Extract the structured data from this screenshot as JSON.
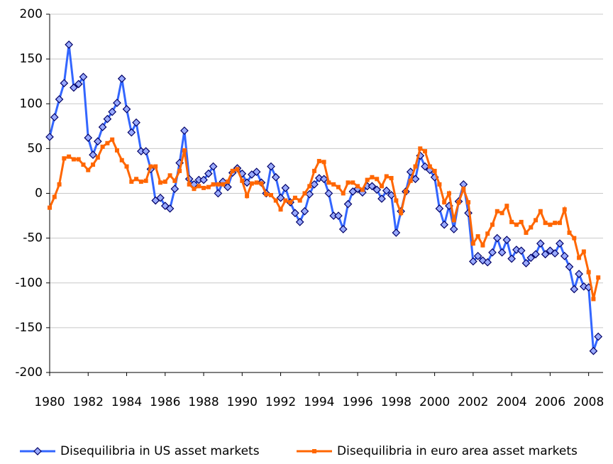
{
  "chart_data": {
    "type": "line",
    "x": [
      1980,
      1980.25,
      1980.5,
      1980.75,
      1981,
      1981.25,
      1981.5,
      1981.75,
      1982,
      1982.25,
      1982.5,
      1982.75,
      1983,
      1983.25,
      1983.5,
      1983.75,
      1984,
      1984.25,
      1984.5,
      1984.75,
      1985,
      1985.25,
      1985.5,
      1985.75,
      1986,
      1986.25,
      1986.5,
      1986.75,
      1987,
      1987.25,
      1987.5,
      1987.75,
      1988,
      1988.25,
      1988.5,
      1988.75,
      1989,
      1989.25,
      1989.5,
      1989.75,
      1990,
      1990.25,
      1990.5,
      1990.75,
      1991,
      1991.25,
      1991.5,
      1991.75,
      1992,
      1992.25,
      1992.5,
      1992.75,
      1993,
      1993.25,
      1993.5,
      1993.75,
      1994,
      1994.25,
      1994.5,
      1994.75,
      1995,
      1995.25,
      1995.5,
      1995.75,
      1996,
      1996.25,
      1996.5,
      1996.75,
      1997,
      1997.25,
      1997.5,
      1997.75,
      1998,
      1998.25,
      1998.5,
      1998.75,
      1999,
      1999.25,
      1999.5,
      1999.75,
      2000,
      2000.25,
      2000.5,
      2000.75,
      2001,
      2001.25,
      2001.5,
      2001.75,
      2002,
      2002.25,
      2002.5,
      2002.75,
      2003,
      2003.25,
      2003.5,
      2003.75,
      2004,
      2004.25,
      2004.5,
      2004.75,
      2005,
      2005.25,
      2005.5,
      2005.75,
      2006,
      2006.25,
      2006.5,
      2006.75,
      2007,
      2007.25,
      2007.5,
      2007.75,
      2008,
      2008.25,
      2008.5
    ],
    "series": [
      {
        "name": "Disequilibria in US asset markets",
        "color": "#3366ff",
        "marker": "diamond",
        "values": [
          63,
          85,
          105,
          123,
          166,
          118,
          122,
          130,
          62,
          43,
          58,
          74,
          83,
          91,
          101,
          128,
          94,
          68,
          79,
          47,
          47,
          27,
          -8,
          -5,
          -14,
          -17,
          5,
          34,
          70,
          16,
          10,
          15,
          15,
          22,
          30,
          0,
          13,
          7,
          23,
          28,
          22,
          12,
          21,
          24,
          12,
          0,
          30,
          18,
          -5,
          6,
          -10,
          -22,
          -32,
          -20,
          -1,
          10,
          17,
          16,
          0,
          -25,
          -25,
          -40,
          -12,
          2,
          5,
          1,
          8,
          8,
          4,
          -6,
          3,
          -2,
          -44,
          -20,
          2,
          24,
          16,
          42,
          30,
          26,
          18,
          -17,
          -35,
          -14,
          -40,
          -9,
          10,
          -22,
          -76,
          -70,
          -75,
          -77,
          -66,
          -50,
          -66,
          -52,
          -73,
          -63,
          -64,
          -78,
          -72,
          -68,
          -56,
          -68,
          -64,
          -67,
          -56,
          -70,
          -82,
          -107,
          -90,
          -104,
          -105,
          -176,
          -160
        ]
      },
      {
        "name": "Disequilibria in euro area asset markets",
        "color": "#ff6600",
        "marker": "square",
        "values": [
          -16,
          -4,
          10,
          39,
          41,
          38,
          38,
          32,
          26,
          32,
          40,
          52,
          56,
          60,
          48,
          37,
          30,
          13,
          16,
          13,
          14,
          30,
          30,
          12,
          13,
          20,
          14,
          25,
          48,
          10,
          5,
          8,
          6,
          7,
          10,
          10,
          10,
          13,
          25,
          27,
          14,
          -3,
          11,
          12,
          11,
          -1,
          -2,
          -8,
          -18,
          -8,
          -10,
          -5,
          -8,
          0,
          8,
          25,
          36,
          35,
          12,
          10,
          7,
          0,
          12,
          12,
          8,
          4,
          15,
          18,
          16,
          8,
          19,
          17,
          -8,
          -22,
          2,
          14,
          30,
          50,
          47,
          30,
          25,
          10,
          -10,
          0,
          -30,
          -10,
          5,
          -10,
          -56,
          -48,
          -58,
          -45,
          -35,
          -20,
          -22,
          -14,
          -32,
          -35,
          -32,
          -44,
          -38,
          -30,
          -20,
          -33,
          -35,
          -33,
          -33,
          -18,
          -44,
          -50,
          -72,
          -65,
          -88,
          -118,
          -94
        ]
      }
    ],
    "xlim": [
      1980,
      2008.75
    ],
    "xticks": [
      1980,
      1982,
      1984,
      1986,
      1988,
      1990,
      1992,
      1994,
      1996,
      1998,
      2000,
      2002,
      2004,
      2006,
      2008
    ],
    "ylim": [
      -200,
      200
    ],
    "yticks": [
      -200,
      -150,
      -100,
      -50,
      0,
      50,
      100,
      150,
      200
    ],
    "grid": true,
    "legend": "bottom"
  }
}
